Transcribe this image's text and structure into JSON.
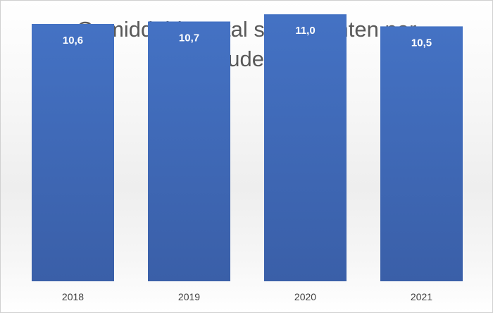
{
  "chart_data": {
    "type": "bar",
    "title": "Gemiddeld aantal studiepunten per student",
    "xlabel": "",
    "ylabel": "",
    "categories": [
      "2018",
      "2019",
      "2020",
      "2021"
    ],
    "values": [
      10.6,
      10.7,
      11.0,
      10.5
    ],
    "data_labels": [
      "10,6",
      "10,7",
      "11,0",
      "10,5"
    ],
    "ylim": [
      0,
      11.5
    ],
    "grid": false,
    "legend": "none",
    "bar_color": "#4472C4",
    "bar_color_dark": "#3A5FA8"
  }
}
